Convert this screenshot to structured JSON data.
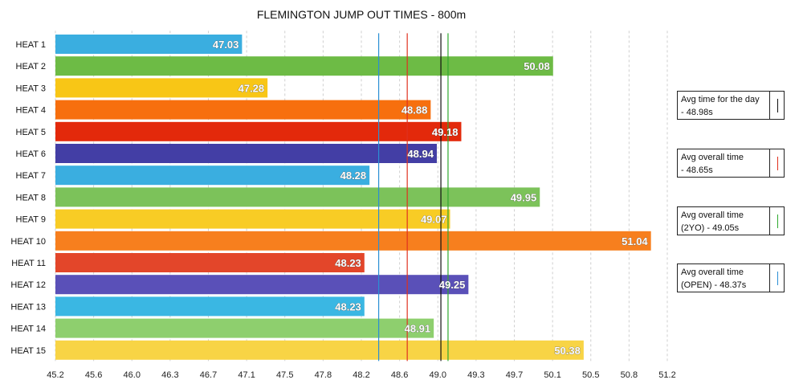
{
  "chart_data": {
    "type": "bar",
    "orientation": "horizontal",
    "title": "FLEMINGTON JUMP OUT TIMES - 800m",
    "xlabel": "",
    "ylabel": "",
    "categories": [
      "HEAT 1",
      "HEAT 2",
      "HEAT 3",
      "HEAT 4",
      "HEAT 5",
      "HEAT 6",
      "HEAT 7",
      "HEAT 8",
      "HEAT 9",
      "HEAT 10",
      "HEAT 11",
      "HEAT 12",
      "HEAT 13",
      "HEAT 14",
      "HEAT 15"
    ],
    "values": [
      47.03,
      50.08,
      47.28,
      48.88,
      49.18,
      48.94,
      48.28,
      49.95,
      49.07,
      51.04,
      48.23,
      49.25,
      48.23,
      48.91,
      50.38
    ],
    "value_labels": [
      "47.03",
      "50.08",
      "47.28",
      "48.88",
      "49.18",
      "48.94",
      "48.28",
      "49.95",
      "49.07",
      "51.04",
      "48.23",
      "49.25",
      "48.23",
      "48.91",
      "50.38"
    ],
    "bar_colors": [
      "#3aaee0",
      "#6dbb45",
      "#f8c616",
      "#f76f0e",
      "#e3290b",
      "#433ea5",
      "#3aaee0",
      "#7cc25a",
      "#f8cc25",
      "#f77f1e",
      "#e3462a",
      "#5a50b8",
      "#3ab7e3",
      "#8ecf6e",
      "#f8d445"
    ],
    "xlim": [
      45.2,
      51.2
    ],
    "xticks": [
      "45.2",
      "45.6",
      "46.0",
      "46.3",
      "46.7",
      "47.1",
      "47.5",
      "47.8",
      "48.2",
      "48.6",
      "49.0",
      "49.3",
      "49.7",
      "50.1",
      "50.5",
      "50.8",
      "51.2"
    ],
    "grid": "vertical dashed",
    "reference_lines": [
      {
        "value": 48.98,
        "color": "#111111"
      },
      {
        "value": 48.65,
        "color": "#e0301e"
      },
      {
        "value": 49.05,
        "color": "#2ea82e"
      },
      {
        "value": 48.37,
        "color": "#2b8fd4"
      }
    ],
    "legend_position": "right",
    "legend": [
      {
        "text_line1": "Avg time for the day",
        "text_line2": "- 48.98s",
        "color": "#111111"
      },
      {
        "text_line1": "Avg overall time",
        "text_line2": "- 48.65s",
        "color": "#e0301e"
      },
      {
        "text_line1": "Avg overall time",
        "text_line2": "(2YO) - 49.05s",
        "color": "#2ea82e"
      },
      {
        "text_line1": "Avg overall time",
        "text_line2": "(OPEN) - 48.37s",
        "color": "#2b8fd4"
      }
    ]
  }
}
